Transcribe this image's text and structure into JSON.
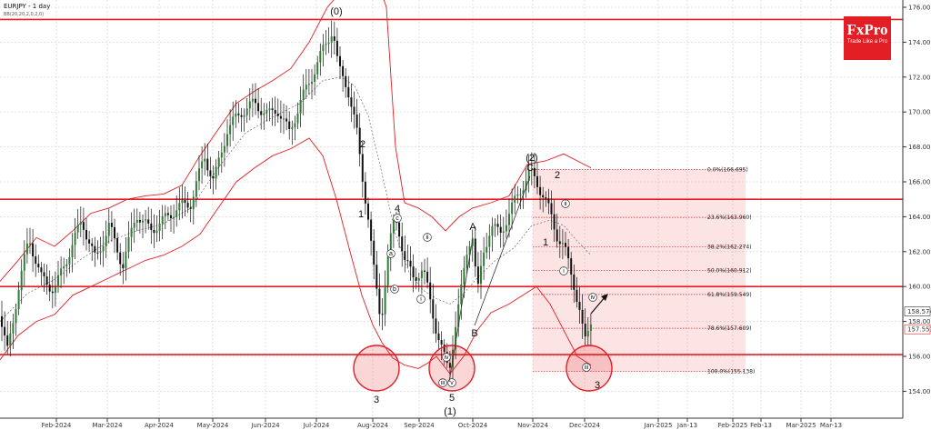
{
  "header": {
    "symbol_label": "EURJPY - 1 day",
    "indicator_label": "BB(20,20,2,0,2,0)"
  },
  "logo": {
    "brand": "FxPro",
    "tagline": "Trade Like a Pro",
    "color": "#e31e24"
  },
  "chart_data": {
    "type": "candlestick",
    "title": "EURJPY - 1 day",
    "ylim": [
      153.8,
      176.5
    ],
    "y_ticks": [
      "176.000",
      "174.000",
      "172.000",
      "170.000",
      "168.000",
      "166.000",
      "164.000",
      "162.000",
      "160.000",
      "158.000",
      "156.000",
      "154.000"
    ],
    "x_ticks": [
      "Feb-2024",
      "Mar-2024",
      "Apr-2024",
      "May-2024",
      "Jun-2024",
      "Jul-2024",
      "Aug-2024",
      "Sep-2024",
      "Oct-2024",
      "Nov-2024",
      "Dec-2024",
      "Jan-2025",
      "Jan-13",
      "Feb-2025",
      "Feb-13",
      "Mar-2025",
      "Mar-13"
    ],
    "price_labels": [
      {
        "text": "158.574",
        "value": 158.574,
        "color": "#333333"
      },
      {
        "text": "157.551",
        "value": 157.551,
        "color": "#e31e24"
      }
    ],
    "key_levels": [
      175.3,
      165.0,
      160.0,
      156.1
    ],
    "fib_levels": [
      {
        "text": "0.0%(166.695)",
        "value": 166.695
      },
      {
        "text": "23.6%(163.960)",
        "value": 163.96
      },
      {
        "text": "38.2%(162.274)",
        "value": 162.274
      },
      {
        "text": "50.0%(160.912)",
        "value": 160.912
      },
      {
        "text": "61.8%(159.549)",
        "value": 159.549
      },
      {
        "text": "78.6%(157.609)",
        "value": 157.609
      },
      {
        "text": "100.0%(155.138)",
        "value": 155.138
      }
    ],
    "wave_labels": [
      "(0)",
      "2",
      "1",
      "3",
      "4",
      "5",
      "(1)",
      "A",
      "B",
      "(2)",
      "C",
      "2",
      "1",
      "3"
    ],
    "circle_labels": [
      "c",
      "a",
      "b",
      "i",
      "ii",
      "iii",
      "iv",
      "v",
      "ii",
      "i",
      "iv",
      "iii"
    ],
    "price_path": [
      [
        0,
        158.3
      ],
      [
        8,
        156.2
      ],
      [
        20,
        159.8
      ],
      [
        32,
        162.8
      ],
      [
        45,
        160.5
      ],
      [
        60,
        159.8
      ],
      [
        75,
        161.8
      ],
      [
        90,
        163.8
      ],
      [
        105,
        161.5
      ],
      [
        120,
        163.5
      ],
      [
        135,
        161.2
      ],
      [
        150,
        164.2
      ],
      [
        165,
        163.2
      ],
      [
        180,
        163.8
      ],
      [
        195,
        164.5
      ],
      [
        210,
        164.8
      ],
      [
        225,
        167.5
      ],
      [
        235,
        166.0
      ],
      [
        250,
        169.0
      ],
      [
        265,
        170.0
      ],
      [
        280,
        170.5
      ],
      [
        295,
        169.8
      ],
      [
        305,
        170.2
      ],
      [
        318,
        168.8
      ],
      [
        330,
        170.5
      ],
      [
        345,
        172.3
      ],
      [
        355,
        173.5
      ],
      [
        366,
        174.8
      ],
      [
        372,
        172.5
      ],
      [
        382,
        171.5
      ],
      [
        392,
        169.0
      ],
      [
        398,
        166.5
      ],
      [
        405,
        164.0
      ],
      [
        412,
        160.5
      ],
      [
        419,
        158.0
      ],
      [
        425,
        161.0
      ],
      [
        432,
        163.5
      ],
      [
        437,
        163.8
      ],
      [
        445,
        161.5
      ],
      [
        455,
        160.5
      ],
      [
        465,
        161.0
      ],
      [
        472,
        159.5
      ],
      [
        480,
        157.5
      ],
      [
        488,
        156.0
      ],
      [
        494,
        155.2
      ],
      [
        500,
        157.5
      ],
      [
        508,
        160.0
      ],
      [
        515,
        162.5
      ],
      [
        520,
        163.0
      ],
      [
        525,
        159.5
      ],
      [
        532,
        162.0
      ],
      [
        540,
        163.5
      ],
      [
        550,
        163.0
      ],
      [
        560,
        164.2
      ],
      [
        572,
        165.5
      ],
      [
        583,
        166.6
      ],
      [
        590,
        166.0
      ],
      [
        598,
        165.2
      ],
      [
        605,
        164.2
      ],
      [
        612,
        163.0
      ],
      [
        620,
        162.3
      ],
      [
        626,
        161.2
      ],
      [
        632,
        160.0
      ],
      [
        638,
        158.5
      ],
      [
        643,
        156.7
      ],
      [
        648,
        157.7
      ],
      [
        652,
        158.6
      ]
    ],
    "bb_upper": [
      [
        0,
        160.3
      ],
      [
        20,
        161.5
      ],
      [
        40,
        162.8
      ],
      [
        60,
        162.3
      ],
      [
        80,
        163.2
      ],
      [
        100,
        164.2
      ],
      [
        120,
        164.5
      ],
      [
        140,
        165.0
      ],
      [
        160,
        165.2
      ],
      [
        180,
        165.3
      ],
      [
        200,
        165.8
      ],
      [
        220,
        167.5
      ],
      [
        240,
        169.0
      ],
      [
        260,
        170.5
      ],
      [
        280,
        171.2
      ],
      [
        300,
        171.8
      ],
      [
        320,
        172.5
      ],
      [
        340,
        174.0
      ],
      [
        360,
        176.0
      ],
      [
        380,
        177.2
      ],
      [
        395,
        178.0
      ],
      [
        410,
        178.3
      ],
      [
        425,
        176.0
      ],
      [
        435,
        168.0
      ],
      [
        445,
        164.8
      ],
      [
        460,
        164.5
      ],
      [
        475,
        164.0
      ],
      [
        490,
        163.2
      ],
      [
        505,
        164.0
      ],
      [
        520,
        164.5
      ],
      [
        540,
        164.8
      ],
      [
        560,
        165.2
      ],
      [
        580,
        167.0
      ],
      [
        600,
        167.2
      ],
      [
        620,
        167.6
      ],
      [
        635,
        167.2
      ],
      [
        650,
        166.8
      ]
    ],
    "bb_lower": [
      [
        0,
        155.8
      ],
      [
        20,
        157.2
      ],
      [
        40,
        158.0
      ],
      [
        60,
        158.4
      ],
      [
        80,
        159.5
      ],
      [
        100,
        160.0
      ],
      [
        120,
        160.5
      ],
      [
        140,
        161.0
      ],
      [
        160,
        161.5
      ],
      [
        180,
        161.8
      ],
      [
        200,
        162.3
      ],
      [
        220,
        163.0
      ],
      [
        240,
        164.5
      ],
      [
        260,
        166.0
      ],
      [
        280,
        166.8
      ],
      [
        300,
        167.5
      ],
      [
        320,
        167.9
      ],
      [
        340,
        168.5
      ],
      [
        355,
        167.5
      ],
      [
        370,
        165.0
      ],
      [
        385,
        162.0
      ],
      [
        398,
        159.5
      ],
      [
        410,
        157.8
      ],
      [
        420,
        156.8
      ],
      [
        432,
        155.9
      ],
      [
        445,
        155.5
      ],
      [
        460,
        155.3
      ],
      [
        470,
        155.6
      ],
      [
        480,
        156.0
      ],
      [
        495,
        155.0
      ],
      [
        510,
        156.0
      ],
      [
        525,
        157.5
      ],
      [
        540,
        158.5
      ],
      [
        560,
        159.0
      ],
      [
        575,
        159.5
      ],
      [
        590,
        160.0
      ],
      [
        605,
        159.0
      ],
      [
        620,
        157.5
      ],
      [
        635,
        156.0
      ],
      [
        650,
        155.5
      ]
    ],
    "bb_mid": [
      [
        0,
        158.0
      ],
      [
        30,
        159.6
      ],
      [
        60,
        160.4
      ],
      [
        90,
        161.6
      ],
      [
        120,
        162.6
      ],
      [
        150,
        163.2
      ],
      [
        180,
        163.6
      ],
      [
        210,
        164.5
      ],
      [
        240,
        166.8
      ],
      [
        270,
        168.8
      ],
      [
        300,
        169.7
      ],
      [
        330,
        170.5
      ],
      [
        355,
        171.8
      ],
      [
        375,
        172.0
      ],
      [
        390,
        171.5
      ],
      [
        405,
        169.8
      ],
      [
        420,
        166.5
      ],
      [
        435,
        163.0
      ],
      [
        450,
        160.8
      ],
      [
        465,
        159.8
      ],
      [
        480,
        159.3
      ],
      [
        495,
        159.0
      ],
      [
        510,
        159.6
      ],
      [
        525,
        160.5
      ],
      [
        545,
        161.5
      ],
      [
        565,
        162.2
      ],
      [
        585,
        163.5
      ],
      [
        605,
        163.8
      ],
      [
        620,
        163.5
      ],
      [
        635,
        162.6
      ],
      [
        650,
        161.8
      ]
    ]
  }
}
